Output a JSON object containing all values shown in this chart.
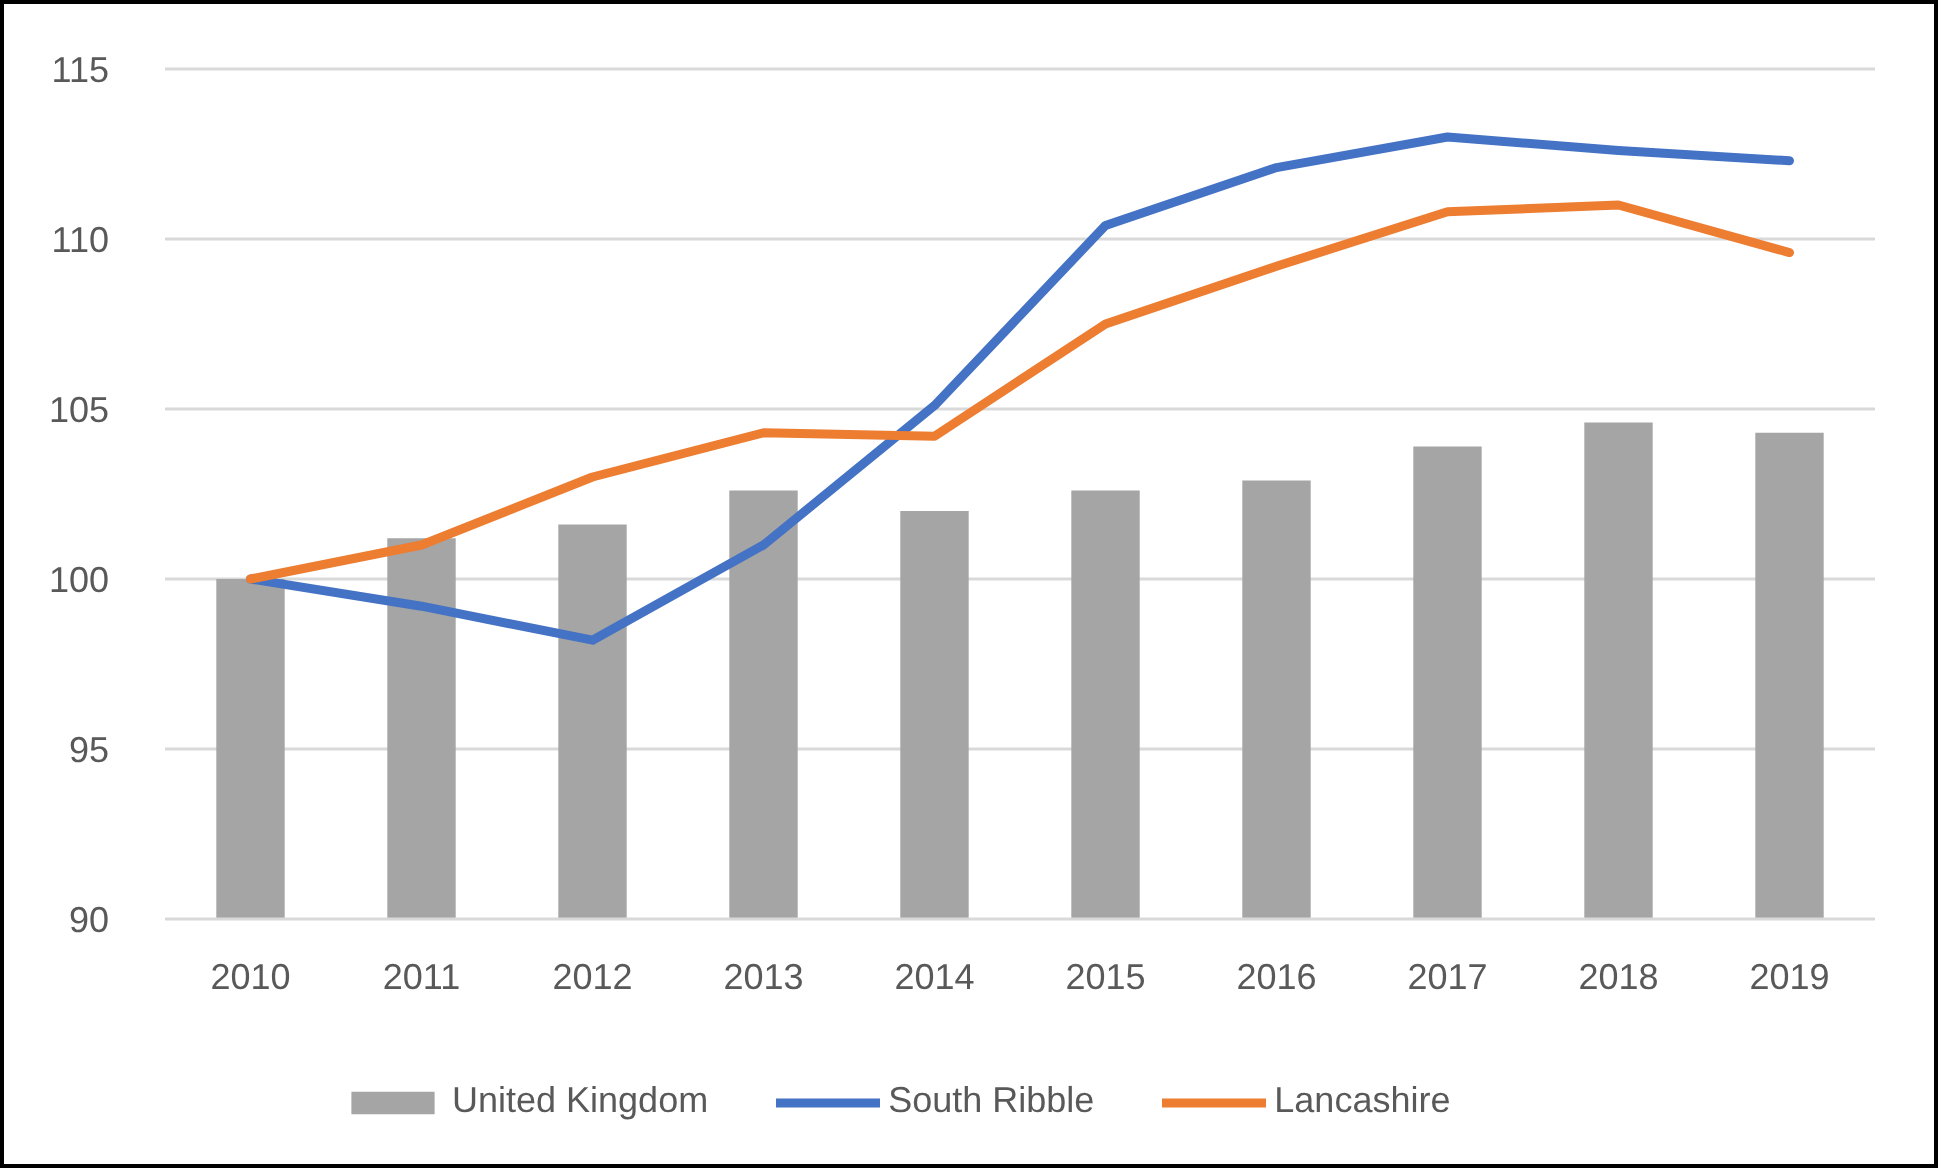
{
  "chart_data": {
    "type": "line",
    "categories": [
      "2010",
      "2011",
      "2012",
      "2013",
      "2014",
      "2015",
      "2016",
      "2017",
      "2018",
      "2019"
    ],
    "series": [
      {
        "name": "United Kingdom",
        "type": "bar",
        "color": "#a5a5a5",
        "values": [
          100.0,
          101.2,
          101.6,
          102.6,
          102.0,
          102.6,
          102.9,
          103.9,
          104.6,
          104.3
        ]
      },
      {
        "name": "South Ribble",
        "color": "#4472c4",
        "values": [
          100.0,
          99.2,
          98.2,
          101.0,
          105.1,
          110.4,
          112.1,
          113.0,
          112.6,
          112.3
        ]
      },
      {
        "name": "Lancashire",
        "color": "#ed7d31",
        "values": [
          100.0,
          101.0,
          103.0,
          104.3,
          104.2,
          107.5,
          109.2,
          110.8,
          111.0,
          109.6
        ]
      }
    ],
    "ylim": [
      90,
      115
    ],
    "yticks": [
      90,
      95,
      100,
      105,
      110,
      115
    ],
    "grid": "y",
    "legend": "bottom"
  }
}
